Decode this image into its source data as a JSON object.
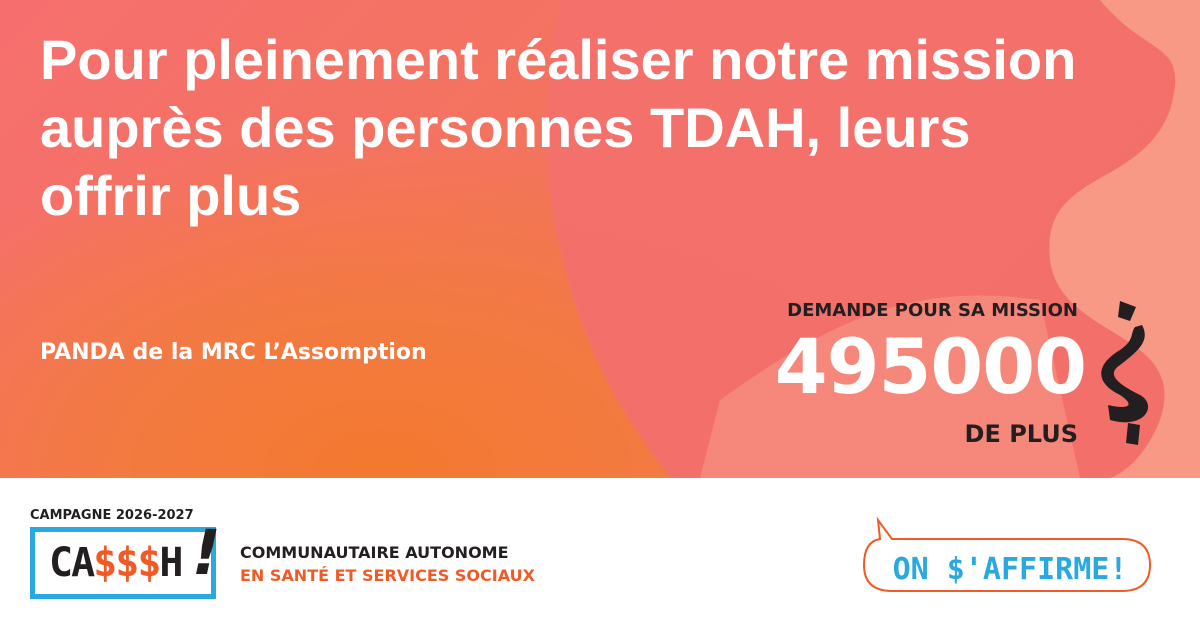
{
  "headline": "Pour pleinement réaliser notre mission auprès des personnes TDAH, leurs offrir plus",
  "organization": "PANDA de la MRC L’Assomption",
  "ask": {
    "label": "DEMANDE POUR SA MISSION",
    "amount": "495000",
    "currency": "$",
    "suffix": "DE PLUS"
  },
  "footer": {
    "campaign": "CAMPAGNE 2026-2027",
    "logo": {
      "pre": "CA",
      "mid": "$$$",
      "post": "H",
      "bang": "!"
    },
    "sector_line1": "COMMUNAUTAIRE AUTONOME",
    "sector_line2": "EN SANTÉ ET SERVICES SOCIAUX",
    "slogan": "ON $'AFFIRME!"
  },
  "colors": {
    "coral": "#f4706a",
    "orange": "#f37a2f",
    "dark": "#231f20",
    "blue": "#29a9e0",
    "accent": "#f15a24"
  }
}
